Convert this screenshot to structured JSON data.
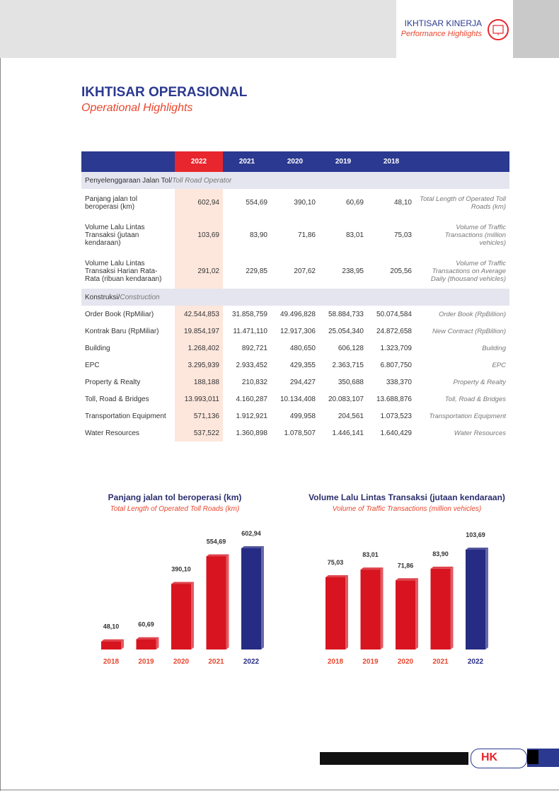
{
  "header": {
    "section": "IKHTISAR KINERJA",
    "section_en": "Performance Highlights"
  },
  "title": "IKHTISAR OPERASIONAL",
  "subtitle": "Operational Highlights",
  "table": {
    "columns": [
      "2022",
      "2021",
      "2020",
      "2019",
      "2018"
    ],
    "groups": [
      {
        "title": "Penyelenggaraan Jalan Tol/",
        "title_en": "Toll Road Operator",
        "rows": [
          {
            "label": "Panjang jalan tol beroperasi (km)",
            "values": [
              "602,94",
              "554,69",
              "390,10",
              "60,69",
              "48,10"
            ],
            "label_en": "Total Length of Operated Toll Roads (km)"
          },
          {
            "label": "Volume Lalu Lintas Transaksi (jutaan kendaraan)",
            "values": [
              "103,69",
              "83,90",
              "71,86",
              "83,01",
              "75,03"
            ],
            "label_en": "Volume of Traffic Transactions (million vehicles)"
          },
          {
            "label": "Volume Lalu Lintas Transaksi Harian Rata-Rata (ribuan kendaraan)",
            "values": [
              "291,02",
              "229,85",
              "207,62",
              "238,95",
              "205,56"
            ],
            "label_en": "Volume of Traffic Transactions on Average Daily (thousand vehicles)"
          }
        ]
      },
      {
        "title": "Konstruksi/",
        "title_en": "Construction",
        "rows": [
          {
            "label": "Order Book (RpMiliar)",
            "values": [
              "42.544,853",
              "31.858,759",
              "49.496,828",
              "58.884,733",
              "50.074,584"
            ],
            "label_en": "Order Book (RpBillion)"
          },
          {
            "label": "Kontrak Baru (RpMiliar)",
            "values": [
              "19.854,197",
              "11.471,110",
              "12.917,306",
              "25.054,340",
              "24.872,658"
            ],
            "label_en": "New Contract (RpBillion)"
          },
          {
            "label": "Building",
            "values": [
              "1.268,402",
              "892,721",
              "480,650",
              "606,128",
              "1.323,709"
            ],
            "label_en": "Building"
          },
          {
            "label": "EPC",
            "values": [
              "3.295,939",
              "2.933,452",
              "429,355",
              "2.363,715",
              "6.807,750"
            ],
            "label_en": "EPC"
          },
          {
            "label": "Property & Realty",
            "values": [
              "188,188",
              "210,832",
              "294,427",
              "350,688",
              "338,370"
            ],
            "label_en": "Property & Realty"
          },
          {
            "label": "Toll, Road & Bridges",
            "values": [
              "13.993,011",
              "4.160,287",
              "10.134,408",
              "20.083,107",
              "13.688,876"
            ],
            "label_en": "Toll, Road & Bridges"
          },
          {
            "label": "Transportation Equipment",
            "values": [
              "571,136",
              "1.912,921",
              "499,958",
              "204,561",
              "1.073,523"
            ],
            "label_en": "Transportation Equipment"
          },
          {
            "label": "Water Resources",
            "values": [
              "537,522",
              "1.360,898",
              "1.078,507",
              "1.446,141",
              "1.640,429"
            ],
            "label_en": "Water Resources"
          }
        ]
      }
    ]
  },
  "chart_data": [
    {
      "type": "bar",
      "title": "Panjang jalan tol beroperasi (km)",
      "subtitle": "Total Length of Operated Toll Roads (km)",
      "categories": [
        "2018",
        "2019",
        "2020",
        "2021",
        "2022"
      ],
      "values": [
        48.1,
        60.69,
        390.1,
        554.69,
        602.94
      ],
      "value_labels": [
        "48,10",
        "60,69",
        "390,10",
        "554,69",
        "602,94"
      ],
      "colors": [
        "#d7141f",
        "#d7141f",
        "#d7141f",
        "#d7141f",
        "#262b83"
      ]
    },
    {
      "type": "bar",
      "title": "Volume Lalu Lintas Transaksi (jutaan kendaraan)",
      "subtitle": "Volume of Traffic Transactions (million vehicles)",
      "categories": [
        "2018",
        "2019",
        "2020",
        "2021",
        "2022"
      ],
      "values": [
        75.03,
        83.01,
        71.86,
        83.9,
        103.69
      ],
      "value_labels": [
        "75,03",
        "83,01",
        "71,86",
        "83,90",
        "103,69"
      ],
      "colors": [
        "#d7141f",
        "#d7141f",
        "#d7141f",
        "#d7141f",
        "#262b83"
      ]
    }
  ]
}
